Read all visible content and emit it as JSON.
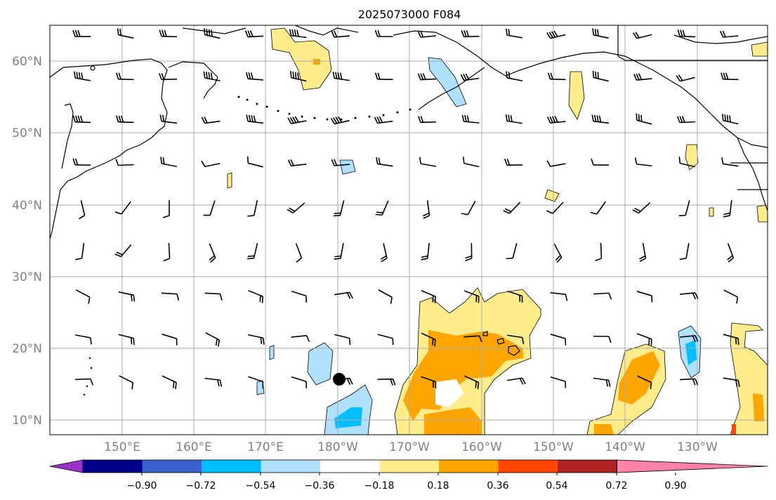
{
  "title": "2025073000 F084",
  "lat_labels": [
    "60°N",
    "50°N",
    "40°N",
    "30°N",
    "20°N",
    "10°N"
  ],
  "lon_labels": [
    "150°E",
    "160°E",
    "170°E",
    "180°W",
    "170°W",
    "160°W",
    "150°W",
    "140°W",
    "130°W"
  ],
  "colorbar": {
    "ticks": [
      "−0.90",
      "−0.72",
      "−0.54",
      "−0.36",
      "−0.18",
      "0.18",
      "0.36",
      "0.54",
      "0.72",
      "0.90"
    ],
    "colors": [
      "#9932cc",
      "#00008b",
      "#3a5fcd",
      "#00bfff",
      "#b0e2ff",
      "#ffffff",
      "#ffec8b",
      "#ffa500",
      "#ff4500",
      "#b22222",
      "#ff83a8"
    ]
  },
  "colors": {
    "coast": "#000000",
    "grid": "#a9a9a9",
    "light_blue": "#b0e2ff",
    "blue": "#00bfff",
    "light_yellow": "#ffec8b",
    "orange": "#ffa500",
    "red": "#ff4500"
  },
  "marker": {
    "name": "storm-center",
    "lon": 180.3,
    "lat": 15.8
  }
}
